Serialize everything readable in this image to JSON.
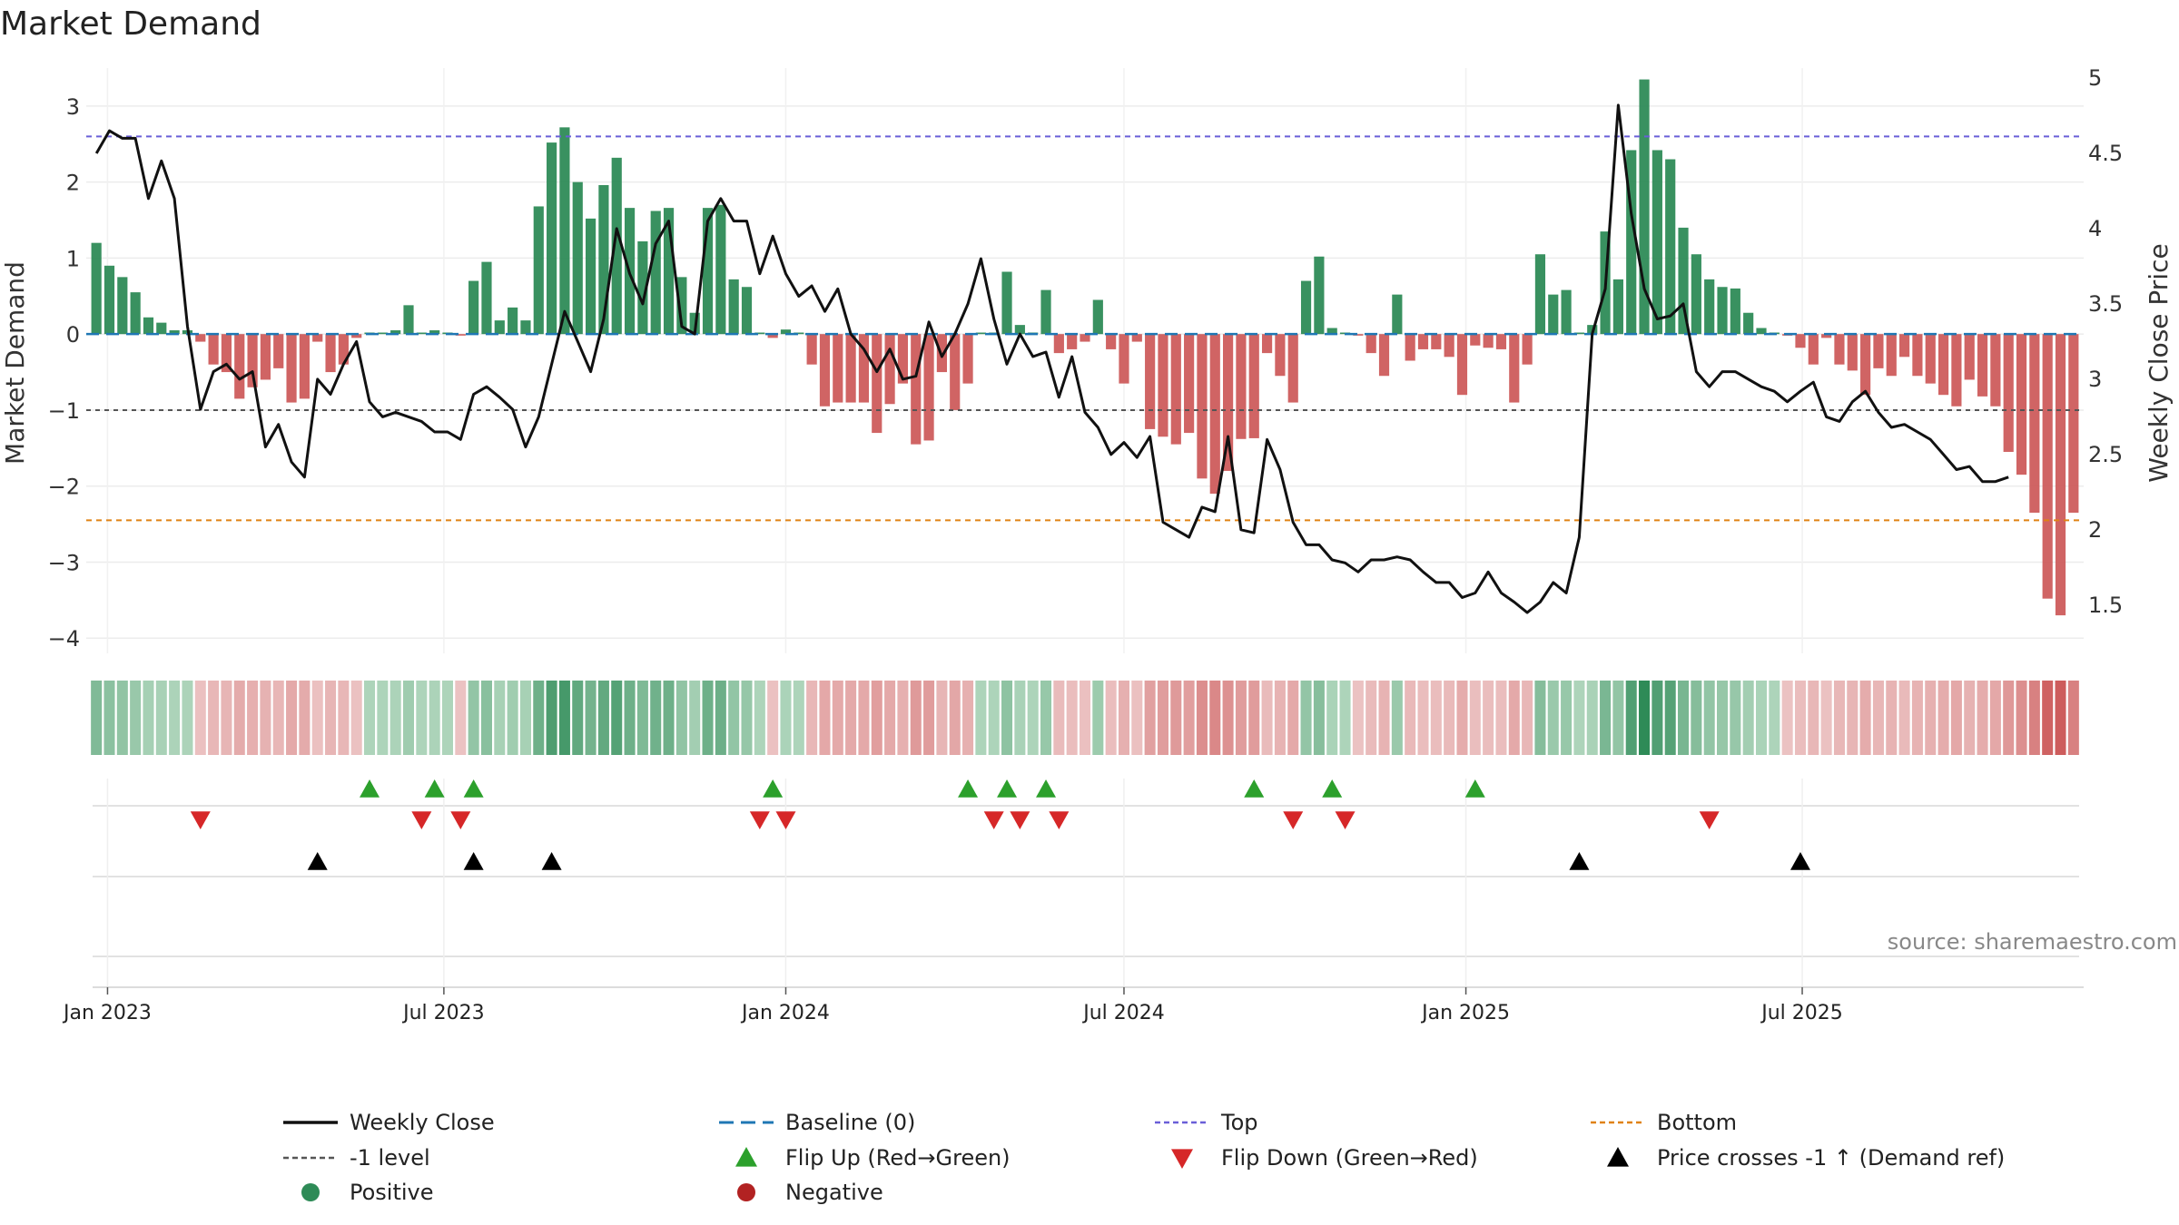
{
  "chart_data": {
    "type": "bar",
    "title": "Market Demand",
    "ylabel_left": "Market Demand",
    "ylabel_right": "Weekly Close Price",
    "ylim_left": [
      -4.2,
      3.5
    ],
    "yticks_left": [
      3,
      2,
      1,
      0,
      -1,
      -2,
      -3,
      -4
    ],
    "yticks_left_labels": [
      "3",
      "2",
      "1",
      "0",
      "−1",
      "−2",
      "−3",
      "−4"
    ],
    "ylim_right": [
      1.3,
      5
    ],
    "yticks_right": [
      5,
      4.5,
      4,
      3.5,
      3,
      2.5,
      2,
      1.5
    ],
    "yticks_right_labels": [
      "5",
      "4.5",
      "4",
      "3.5",
      "3",
      "2.5",
      "2",
      "1.5"
    ],
    "x_start": "2022-12-26",
    "xticks": [
      {
        "date": "2023-01-01",
        "label": "Jan 2023"
      },
      {
        "date": "2023-07-01",
        "label": "Jul 2023"
      },
      {
        "date": "2024-01-01",
        "label": "Jan 2024"
      },
      {
        "date": "2024-07-01",
        "label": "Jul 2024"
      },
      {
        "date": "2025-01-01",
        "label": "Jan 2025"
      },
      {
        "date": "2025-07-01",
        "label": "Jul 2025"
      }
    ],
    "reference_lines": {
      "top": 2.6,
      "bottom": -2.45,
      "minus_one": -1,
      "baseline": 0
    },
    "series": [
      {
        "name": "Market Demand",
        "values": [
          1.2,
          0.9,
          0.75,
          0.55,
          0.22,
          0.15,
          0.05,
          0.05,
          -0.1,
          -0.4,
          -0.5,
          -0.85,
          -0.7,
          -0.6,
          -0.45,
          -0.9,
          -0.85,
          -0.1,
          -0.5,
          -0.4,
          -0.05,
          0.02,
          0.02,
          0.05,
          0.38,
          0.02,
          0.05,
          0.02,
          -0.02,
          0.7,
          0.95,
          0.18,
          0.35,
          0.18,
          1.68,
          2.52,
          2.72,
          2.0,
          1.52,
          1.96,
          2.32,
          1.66,
          1.22,
          1.62,
          1.66,
          0.75,
          0.28,
          1.66,
          1.7,
          0.72,
          0.62,
          0.02,
          -0.05,
          0.06,
          0.02,
          -0.4,
          -0.95,
          -0.9,
          -0.9,
          -0.9,
          -1.3,
          -0.92,
          -0.65,
          -1.45,
          -1.4,
          -0.5,
          -1.0,
          -0.65,
          0.02,
          0.02,
          0.82,
          0.12,
          0.02,
          0.58,
          -0.25,
          -0.2,
          -0.1,
          0.45,
          -0.2,
          -0.65,
          -0.1,
          -1.25,
          -1.35,
          -1.45,
          -1.3,
          -1.9,
          -2.1,
          -1.8,
          -1.38,
          -1.37,
          -0.25,
          -0.55,
          -0.9,
          0.7,
          1.02,
          0.08,
          0.02,
          -0.02,
          -0.25,
          -0.55,
          0.52,
          -0.35,
          -0.2,
          -0.2,
          -0.3,
          -0.8,
          -0.15,
          -0.18,
          -0.2,
          -0.9,
          -0.4,
          1.05,
          0.52,
          0.58,
          0.02,
          0.12,
          1.35,
          0.72,
          2.42,
          3.35,
          2.42,
          2.3,
          1.4,
          1.05,
          0.72,
          0.62,
          0.6,
          0.28,
          0.08,
          0.02,
          -0.02,
          -0.18,
          -0.4,
          -0.05,
          -0.4,
          -0.48,
          -0.8,
          -0.45,
          -0.55,
          -0.3,
          -0.55,
          -0.65,
          -0.8,
          -0.95,
          -0.6,
          -0.82,
          -0.95,
          -1.55,
          -1.85,
          -2.35,
          -3.48,
          -3.7,
          -2.35
        ]
      },
      {
        "name": "Weekly Close",
        "values": [
          4.5,
          4.65,
          4.6,
          4.6,
          4.2,
          4.45,
          4.2,
          3.35,
          2.8,
          3.05,
          3.1,
          3.0,
          3.05,
          2.55,
          2.7,
          2.45,
          2.35,
          3.0,
          2.9,
          3.1,
          3.25,
          2.85,
          2.75,
          2.78,
          2.75,
          2.72,
          2.65,
          2.65,
          2.6,
          2.9,
          2.95,
          2.88,
          2.8,
          2.55,
          2.75,
          3.1,
          3.45,
          3.25,
          3.05,
          3.4,
          4.0,
          3.7,
          3.5,
          3.9,
          4.05,
          3.35,
          3.3,
          4.05,
          4.2,
          4.05,
          4.05,
          3.7,
          3.95,
          3.7,
          3.55,
          3.62,
          3.45,
          3.6,
          3.3,
          3.2,
          3.05,
          3.2,
          3.0,
          3.02,
          3.38,
          3.15,
          3.3,
          3.5,
          3.8,
          3.4,
          3.1,
          3.3,
          3.15,
          3.18,
          2.88,
          3.15,
          2.78,
          2.68,
          2.5,
          2.58,
          2.48,
          2.62,
          2.05,
          2.0,
          1.95,
          2.15,
          2.12,
          2.62,
          2.0,
          1.98,
          2.6,
          2.4,
          2.05,
          1.9,
          1.9,
          1.8,
          1.78,
          1.72,
          1.8,
          1.8,
          1.82,
          1.8,
          1.72,
          1.65,
          1.65,
          1.55,
          1.58,
          1.72,
          1.58,
          1.52,
          1.45,
          1.52,
          1.65,
          1.58,
          1.95,
          3.3,
          3.6,
          4.82,
          4.1,
          3.6,
          3.4,
          3.42,
          3.5,
          3.05,
          2.95,
          3.05,
          3.05,
          3.0,
          2.95,
          2.92,
          2.85,
          2.92,
          2.98,
          2.75,
          2.72,
          2.85,
          2.92,
          2.78,
          2.68,
          2.7,
          2.65,
          2.6,
          2.5,
          2.4,
          2.42,
          2.32,
          2.32,
          2.35
        ]
      }
    ],
    "legend": {
      "placement": "bottom",
      "entries": [
        {
          "label": "Weekly Close",
          "symbol": "line",
          "color": "#111111"
        },
        {
          "label": "Baseline (0)",
          "symbol": "dashed",
          "color": "#1f77b4"
        },
        {
          "label": "Top",
          "symbol": "dotted",
          "color": "#6a5fd8"
        },
        {
          "label": "Bottom",
          "symbol": "dotted",
          "color": "#e08214"
        },
        {
          "label": "-1 level",
          "symbol": "dotted",
          "color": "#555555"
        },
        {
          "label": "Flip Up (Red→Green)",
          "symbol": "tri-up",
          "color": "#2ca02c"
        },
        {
          "label": "Flip Down (Green→Red)",
          "symbol": "tri-down",
          "color": "#d62728"
        },
        {
          "label": "Price crosses -1 ↑ (Demand ref)",
          "symbol": "tri-up",
          "color": "#000000"
        },
        {
          "label": "Positive",
          "symbol": "circle",
          "color": "#2e8b57"
        },
        {
          "label": "Negative",
          "symbol": "circle",
          "color": "#b22222"
        }
      ]
    },
    "events": {
      "flip_up_weeks": [
        21,
        26,
        29,
        52,
        67,
        70,
        73,
        89,
        95,
        106
      ],
      "flip_down_weeks": [
        8,
        25,
        28,
        51,
        53,
        69,
        71,
        74,
        92,
        96,
        124
      ],
      "price_cross_weeks": [
        17,
        29,
        35,
        114,
        131
      ]
    },
    "colors": {
      "positive": "#2e8b57",
      "negative": "#cd5c5c",
      "price": "#111111",
      "top": "#6a5fd8",
      "bottom": "#e08214",
      "minus_one": "#555555",
      "baseline": "#1f77b4",
      "flip_up": "#2ca02c",
      "flip_down": "#d62728",
      "cross": "#000000"
    },
    "source": "source: sharemaestro.com",
    "grid": true
  }
}
